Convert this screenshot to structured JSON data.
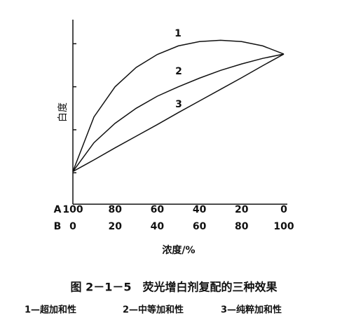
{
  "chart_data": {
    "type": "line",
    "x_label": "浓度/%",
    "y_label": "白度",
    "row_labels": [
      "A",
      "B"
    ],
    "x": [
      0,
      10,
      20,
      30,
      40,
      50,
      60,
      70,
      80,
      90,
      100
    ],
    "xlim": [
      0,
      100
    ],
    "xticks": [
      0,
      20,
      40,
      60,
      80,
      100
    ],
    "xticks_a": [
      {
        "value": 0,
        "label": "100"
      },
      {
        "value": 20,
        "label": "80"
      },
      {
        "value": 40,
        "label": "60"
      },
      {
        "value": 60,
        "label": "40"
      },
      {
        "value": 80,
        "label": "20"
      },
      {
        "value": 100,
        "label": "0"
      }
    ],
    "ylim": [
      0.27,
      4.56
    ],
    "yticks": [
      1,
      2,
      3,
      4
    ],
    "series": [
      {
        "name": "1",
        "color": "#111111",
        "values": [
          1.03,
          2.3,
          3.0,
          3.45,
          3.75,
          3.95,
          4.05,
          4.08,
          4.05,
          3.95,
          3.76
        ]
      },
      {
        "name": "2",
        "color": "#111111",
        "values": [
          1.03,
          1.7,
          2.15,
          2.5,
          2.78,
          3.0,
          3.2,
          3.38,
          3.53,
          3.66,
          3.76
        ]
      },
      {
        "name": "3",
        "color": "#111111",
        "values": [
          1.03,
          1.3,
          1.58,
          1.85,
          2.12,
          2.4,
          2.67,
          2.94,
          3.21,
          3.49,
          3.76
        ]
      }
    ],
    "caption": "图 2－1－5　荧光增白剂复配的三种效果",
    "legend_items": [
      "1—超加和性",
      "2—中等加和性",
      "3—纯粹加和性"
    ]
  }
}
